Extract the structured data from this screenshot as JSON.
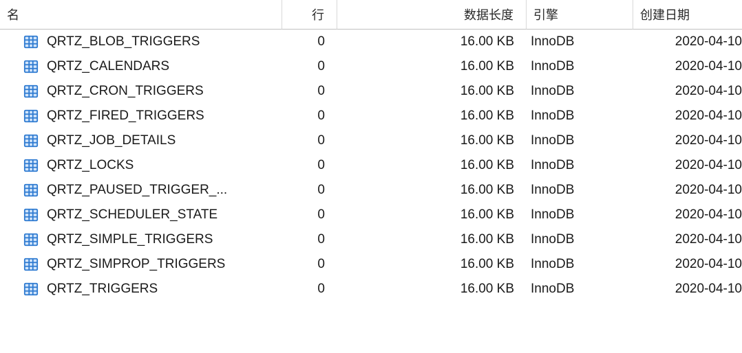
{
  "columns": {
    "name": "名",
    "rows": "行",
    "dataLength": "数据长度",
    "engine": "引擎",
    "createdDate": "创建日期"
  },
  "icon": {
    "border": "#2f7bd1",
    "fill": "#d3e6fb"
  },
  "tables": [
    {
      "name": "QRTZ_BLOB_TRIGGERS",
      "rows": "0",
      "size": "16.00 KB",
      "engine": "InnoDB",
      "date": "2020-04-10"
    },
    {
      "name": "QRTZ_CALENDARS",
      "rows": "0",
      "size": "16.00 KB",
      "engine": "InnoDB",
      "date": "2020-04-10"
    },
    {
      "name": "QRTZ_CRON_TRIGGERS",
      "rows": "0",
      "size": "16.00 KB",
      "engine": "InnoDB",
      "date": "2020-04-10"
    },
    {
      "name": "QRTZ_FIRED_TRIGGERS",
      "rows": "0",
      "size": "16.00 KB",
      "engine": "InnoDB",
      "date": "2020-04-10"
    },
    {
      "name": "QRTZ_JOB_DETAILS",
      "rows": "0",
      "size": "16.00 KB",
      "engine": "InnoDB",
      "date": "2020-04-10"
    },
    {
      "name": "QRTZ_LOCKS",
      "rows": "0",
      "size": "16.00 KB",
      "engine": "InnoDB",
      "date": "2020-04-10"
    },
    {
      "name": "QRTZ_PAUSED_TRIGGER_...",
      "rows": "0",
      "size": "16.00 KB",
      "engine": "InnoDB",
      "date": "2020-04-10"
    },
    {
      "name": "QRTZ_SCHEDULER_STATE",
      "rows": "0",
      "size": "16.00 KB",
      "engine": "InnoDB",
      "date": "2020-04-10"
    },
    {
      "name": "QRTZ_SIMPLE_TRIGGERS",
      "rows": "0",
      "size": "16.00 KB",
      "engine": "InnoDB",
      "date": "2020-04-10"
    },
    {
      "name": "QRTZ_SIMPROP_TRIGGERS",
      "rows": "0",
      "size": "16.00 KB",
      "engine": "InnoDB",
      "date": "2020-04-10"
    },
    {
      "name": "QRTZ_TRIGGERS",
      "rows": "0",
      "size": "16.00 KB",
      "engine": "InnoDB",
      "date": "2020-04-10"
    }
  ]
}
